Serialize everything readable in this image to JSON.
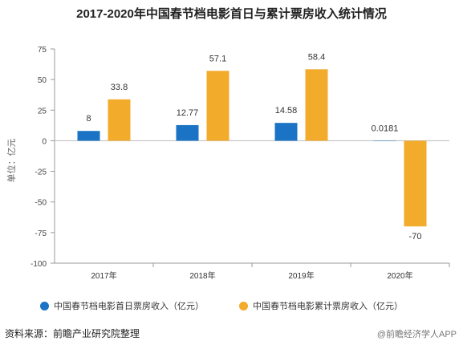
{
  "chart_data": {
    "type": "bar",
    "title": "2017-2020年中国春节档电影首日与累计票房收入统计情况",
    "ylabel": "单位：亿元",
    "ylim": [
      -100,
      75
    ],
    "yticks": [
      75,
      50,
      25,
      0,
      -25,
      -50,
      -75,
      -100
    ],
    "categories": [
      "2017年",
      "2018年",
      "2019年",
      "2020年"
    ],
    "series": [
      {
        "name": "中国春节档电影首日票房收入（亿元）",
        "color": "#1a73c4",
        "values": [
          8,
          12.77,
          14.58,
          0.0181
        ],
        "labels": [
          "8",
          "12.77",
          "14.58",
          "0.0181"
        ]
      },
      {
        "name": "中国春节档电影累计票房收入（亿元）",
        "color": "#f2ab2b",
        "values": [
          33.8,
          57.1,
          58.4,
          -70
        ],
        "labels": [
          "33.8",
          "57.1",
          "58.4",
          "-70"
        ]
      }
    ],
    "legend_position": "bottom"
  },
  "source": "资料来源：前瞻产业研究院整理",
  "watermark": "@前瞻经济学人APP"
}
